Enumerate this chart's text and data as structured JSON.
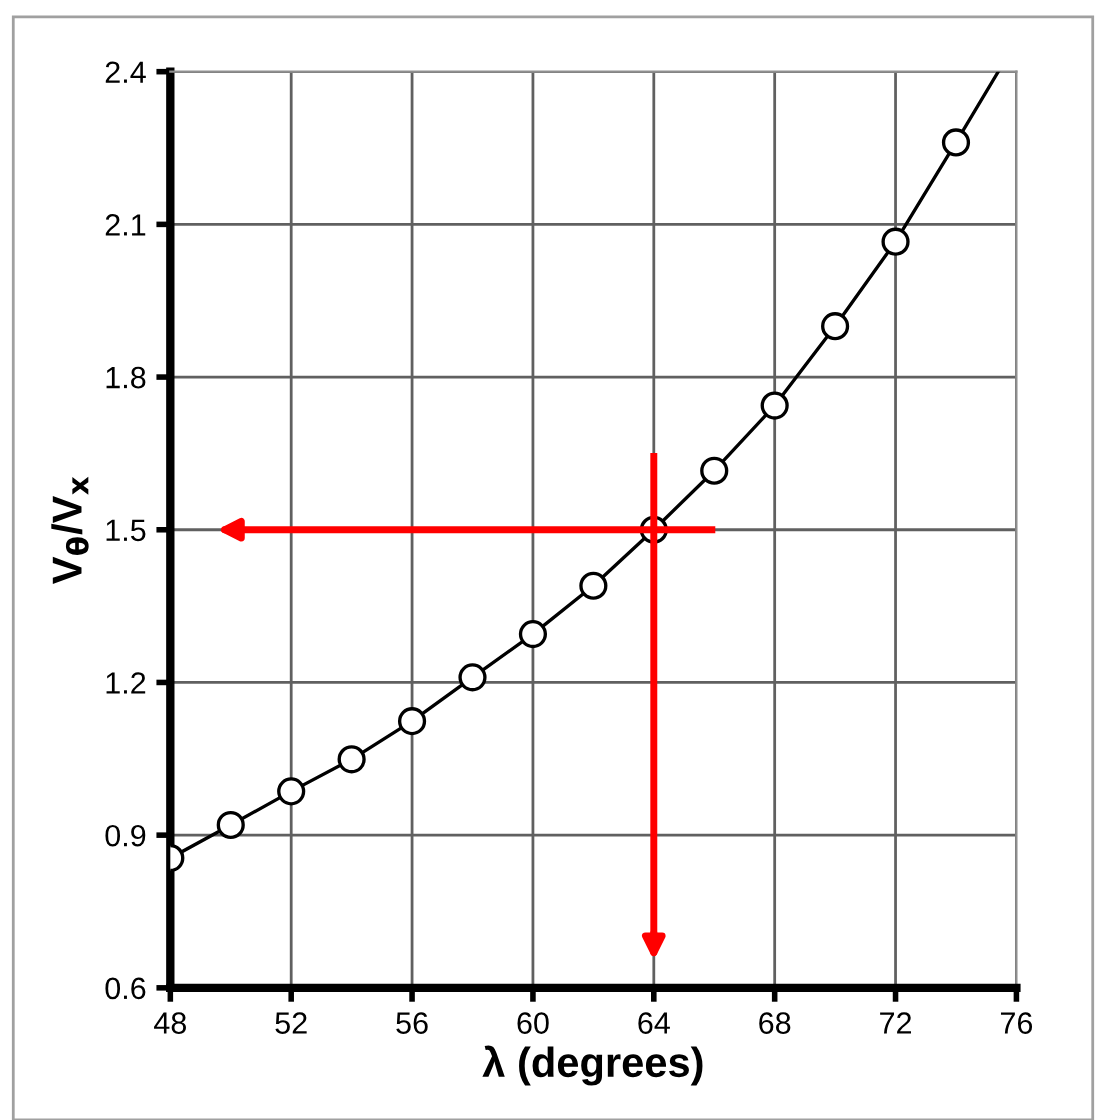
{
  "chart_data": {
    "type": "line",
    "xlabel": "λ (degrees)",
    "ylabel": "V$_{θ}$/V$_{x}$",
    "series": [
      {
        "color": "#000000",
        "marker": "none",
        "x": [
          48,
          50,
          52,
          54,
          56,
          58,
          60,
          62,
          64,
          66,
          68,
          70,
          72,
          74,
          75.4
        ],
        "values": [
          0.855,
          0.92,
          0.986,
          1.049,
          1.124,
          1.21,
          1.295,
          1.39,
          1.5,
          1.616,
          1.744,
          1.9,
          2.066,
          2.261,
          2.4
        ]
      },
      {
        "type": "scatter",
        "color": "#ffffff",
        "marker": "circle",
        "x": [
          48,
          50,
          52,
          54,
          56,
          58,
          60,
          62,
          64,
          66,
          68,
          70,
          72,
          74
        ],
        "values": [
          0.855,
          0.92,
          0.986,
          1.049,
          1.124,
          1.21,
          1.295,
          1.39,
          1.5,
          1.616,
          1.744,
          1.9,
          2.066,
          2.261
        ]
      }
    ],
    "ref_lines": [
      {
        "axis": "x",
        "value": 64,
        "color": "#ff0000"
      },
      {
        "axis": "y",
        "value": 1.5,
        "color": "#ff0000"
      }
    ],
    "xlim": [
      48,
      76
    ],
    "xticks": [
      48,
      52,
      56,
      60,
      64,
      68,
      72,
      76
    ],
    "ylim": [
      0.6,
      2.4
    ],
    "yticks": [
      {
        "value": 0.6,
        "label": "0.6"
      },
      {
        "value": 0.9,
        "label": "0.9"
      },
      {
        "value": 1.2,
        "label": "1.2"
      },
      {
        "value": 1.5,
        "label": "1.5"
      },
      {
        "value": 1.8,
        "label": "1.8"
      },
      {
        "value": 2.1,
        "label": "2.1"
      },
      {
        "value": 2.4,
        "label": "2.4"
      }
    ],
    "grid": true
  }
}
